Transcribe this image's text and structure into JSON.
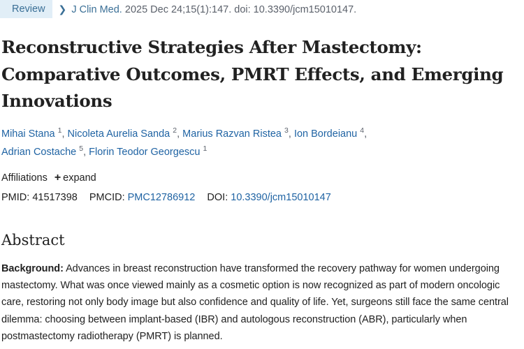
{
  "header": {
    "badge": "Review",
    "journal": "J Clin Med.",
    "citation": "2025 Dec 24;15(1):147. doi: 10.3390/jcm15010147."
  },
  "article": {
    "title": "Reconstructive Strategies After Mastectomy: Comparative Outcomes, PMRT Effects, and Emerging Innovations",
    "authors": [
      {
        "name": "Mihai Stana",
        "sup": "1"
      },
      {
        "name": "Nicoleta Aurelia Sanda",
        "sup": "2"
      },
      {
        "name": "Marius Razvan Ristea",
        "sup": "3"
      },
      {
        "name": "Ion Bordeianu",
        "sup": "4"
      },
      {
        "name": "Adrian Costache",
        "sup": "5"
      },
      {
        "name": "Florin Teodor Georgescu",
        "sup": "1"
      }
    ],
    "affiliations_label": "Affiliations",
    "expand_label": "expand",
    "pmid_label": "PMID:",
    "pmid": "41517398",
    "pmcid_label": "PMCID:",
    "pmcid": "PMC12786912",
    "doi_label": "DOI:",
    "doi": "10.3390/jcm15010147"
  },
  "abstract": {
    "heading": "Abstract",
    "background_label": "Background:",
    "background_text": "Advances in breast reconstruction have transformed the recovery pathway for women undergoing mastectomy. What was once viewed mainly as a cosmetic option is now recognized as part of modern oncologic care, restoring not only body image but also confidence and quality of life. Yet, surgeons still face the same central dilemma: choosing between implant-based (IBR) and autologous reconstruction (ABR), particularly when postmastectomy radiotherapy (PMRT) is planned."
  },
  "colors": {
    "link": "#1f63a3",
    "badge_bg": "#e1eef7",
    "badge_text": "#3a6f96",
    "muted": "#5b616b"
  }
}
